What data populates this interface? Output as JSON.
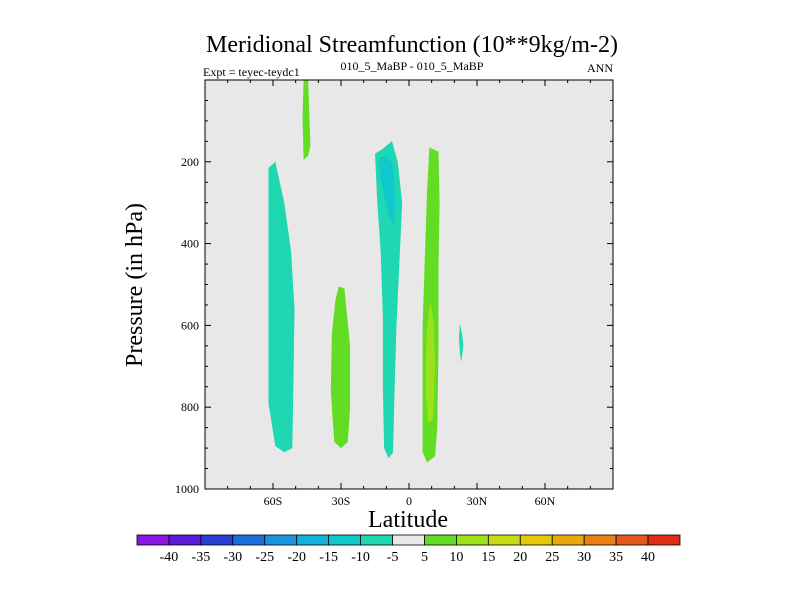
{
  "chart_data": {
    "type": "heatmap",
    "title": "Meridional Streamfunction (10**9kg/m-2)",
    "subtitle_left": "Expt = teyec-teydc1",
    "subtitle_center": "010_5_MaBP - 010_5_MaBP",
    "subtitle_right": "ANN",
    "xlabel": "Latitude",
    "ylabel": "Pressure (in hPa)",
    "xlim": [
      -90,
      90
    ],
    "ylim": [
      1000,
      0
    ],
    "x_ticks": [
      {
        "value": -60,
        "label": "60S"
      },
      {
        "value": -30,
        "label": "30S"
      },
      {
        "value": 0,
        "label": "0"
      },
      {
        "value": 30,
        "label": "30N"
      },
      {
        "value": 60,
        "label": "60N"
      }
    ],
    "y_ticks": [
      {
        "value": 200,
        "label": "200"
      },
      {
        "value": 400,
        "label": "400"
      },
      {
        "value": 600,
        "label": "600"
      },
      {
        "value": 800,
        "label": "800"
      },
      {
        "value": 1000,
        "label": "1000"
      }
    ],
    "colorbar": {
      "labels": [
        "-40",
        "-35",
        "-30",
        "-25",
        "-20",
        "-15",
        "-10",
        "-5",
        "5",
        "10",
        "15",
        "20",
        "25",
        "30",
        "35",
        "40"
      ],
      "colors": [
        "#8a16e6",
        "#5a1bd8",
        "#2a3fd6",
        "#1b6fdd",
        "#1c94e4",
        "#12b2de",
        "#10c9cc",
        "#1fd8b2",
        "#e8e8e8",
        "#63dd24",
        "#9ce11c",
        "#c8dc12",
        "#e6c80c",
        "#e8a80c",
        "#e88014",
        "#e6581a",
        "#e02c14"
      ]
    },
    "regions": [
      {
        "name": "nh-upper-positive",
        "level": "5 to 10",
        "color": "#63dd24",
        "points": [
          [
            -46.5,
            0
          ],
          [
            -44.5,
            0
          ],
          [
            -43.5,
            160
          ],
          [
            -44.5,
            185
          ],
          [
            -46.5,
            195
          ],
          [
            -47,
            90
          ]
        ]
      },
      {
        "name": "sh-negative-cell",
        "level": "-10 to -5",
        "color": "#1fd8b2",
        "points": [
          [
            -62,
            215
          ],
          [
            -59,
            200
          ],
          [
            -55,
            300
          ],
          [
            -52,
            420
          ],
          [
            -50.5,
            560
          ],
          [
            -51,
            750
          ],
          [
            -51.5,
            900
          ],
          [
            -55,
            910
          ],
          [
            -59,
            895
          ],
          [
            -62,
            790
          ],
          [
            -62,
            560
          ],
          [
            -62,
            400
          ]
        ]
      },
      {
        "name": "sh-positive-cell",
        "level": "5 to 10",
        "color": "#63dd24",
        "points": [
          [
            -31,
            505
          ],
          [
            -28.5,
            510
          ],
          [
            -26,
            650
          ],
          [
            -26,
            800
          ],
          [
            -27,
            885
          ],
          [
            -30,
            900
          ],
          [
            -33,
            885
          ],
          [
            -34.5,
            760
          ],
          [
            -34,
            620
          ],
          [
            -32.5,
            540
          ]
        ]
      },
      {
        "name": "equatorial-negative-cell",
        "level": "-10 to -5",
        "color": "#1fd8b2",
        "points": [
          [
            -15,
            180
          ],
          [
            -12,
            170
          ],
          [
            -7.5,
            150
          ],
          [
            -5,
            200
          ],
          [
            -3,
            300
          ],
          [
            -4,
            420
          ],
          [
            -5.5,
            600
          ],
          [
            -6.5,
            780
          ],
          [
            -7,
            910
          ],
          [
            -9,
            925
          ],
          [
            -11,
            900
          ],
          [
            -11.5,
            760
          ],
          [
            -11.5,
            580
          ],
          [
            -12.5,
            420
          ],
          [
            -14,
            300
          ]
        ]
      },
      {
        "name": "equatorial-negative-core",
        "level": "-15 to -10",
        "color": "#10c9cc",
        "points": [
          [
            -13,
            190
          ],
          [
            -9.5,
            185
          ],
          [
            -7,
            210
          ],
          [
            -6,
            280
          ],
          [
            -6.5,
            360
          ],
          [
            -9,
            330
          ],
          [
            -11.5,
            270
          ],
          [
            -13,
            230
          ]
        ]
      },
      {
        "name": "nh-tropical-positive-cell",
        "level": "5 to 10",
        "color": "#63dd24",
        "points": [
          [
            9,
            165
          ],
          [
            13,
            175
          ],
          [
            13.5,
            300
          ],
          [
            13,
            450
          ],
          [
            13,
            650
          ],
          [
            12.5,
            850
          ],
          [
            11.5,
            920
          ],
          [
            8,
            935
          ],
          [
            6,
            910
          ],
          [
            6,
            760
          ],
          [
            6,
            600
          ],
          [
            7,
            430
          ],
          [
            8,
            270
          ]
        ]
      },
      {
        "name": "nh-tropical-positive-core",
        "level": "10 to 15",
        "color": "#9ce11c",
        "points": [
          [
            9.5,
            540
          ],
          [
            11,
            600
          ],
          [
            11.5,
            700
          ],
          [
            11,
            780
          ],
          [
            10.5,
            830
          ],
          [
            8.5,
            840
          ],
          [
            7.5,
            780
          ],
          [
            7.5,
            670
          ],
          [
            8,
            600
          ]
        ]
      },
      {
        "name": "nh-subtropical-negative-spot",
        "level": "-10 to -5",
        "color": "#1fd8b2",
        "points": [
          [
            22.5,
            595
          ],
          [
            23.5,
            625
          ],
          [
            24,
            650
          ],
          [
            23,
            690
          ],
          [
            22.5,
            670
          ],
          [
            22,
            630
          ]
        ]
      }
    ]
  }
}
